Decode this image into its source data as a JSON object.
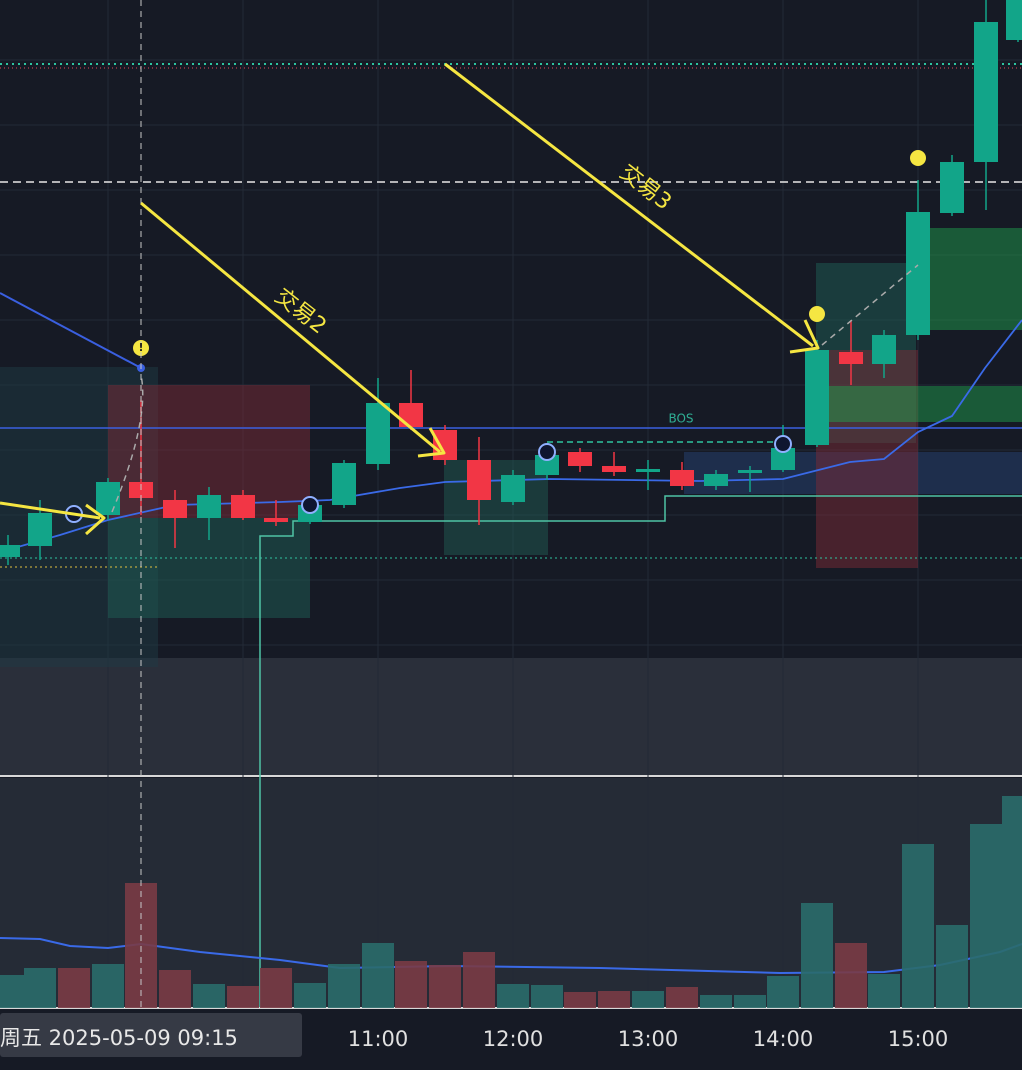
{
  "annotations": {
    "trade2": "交易2",
    "trade3": "交易3",
    "bos": "BOS",
    "marker": "!"
  },
  "time_axis": {
    "cursor_label": "周五 2025-05-09  09:15",
    "labels": [
      "11:00",
      "12:00",
      "13:00",
      "14:00",
      "15:00"
    ]
  }
}
